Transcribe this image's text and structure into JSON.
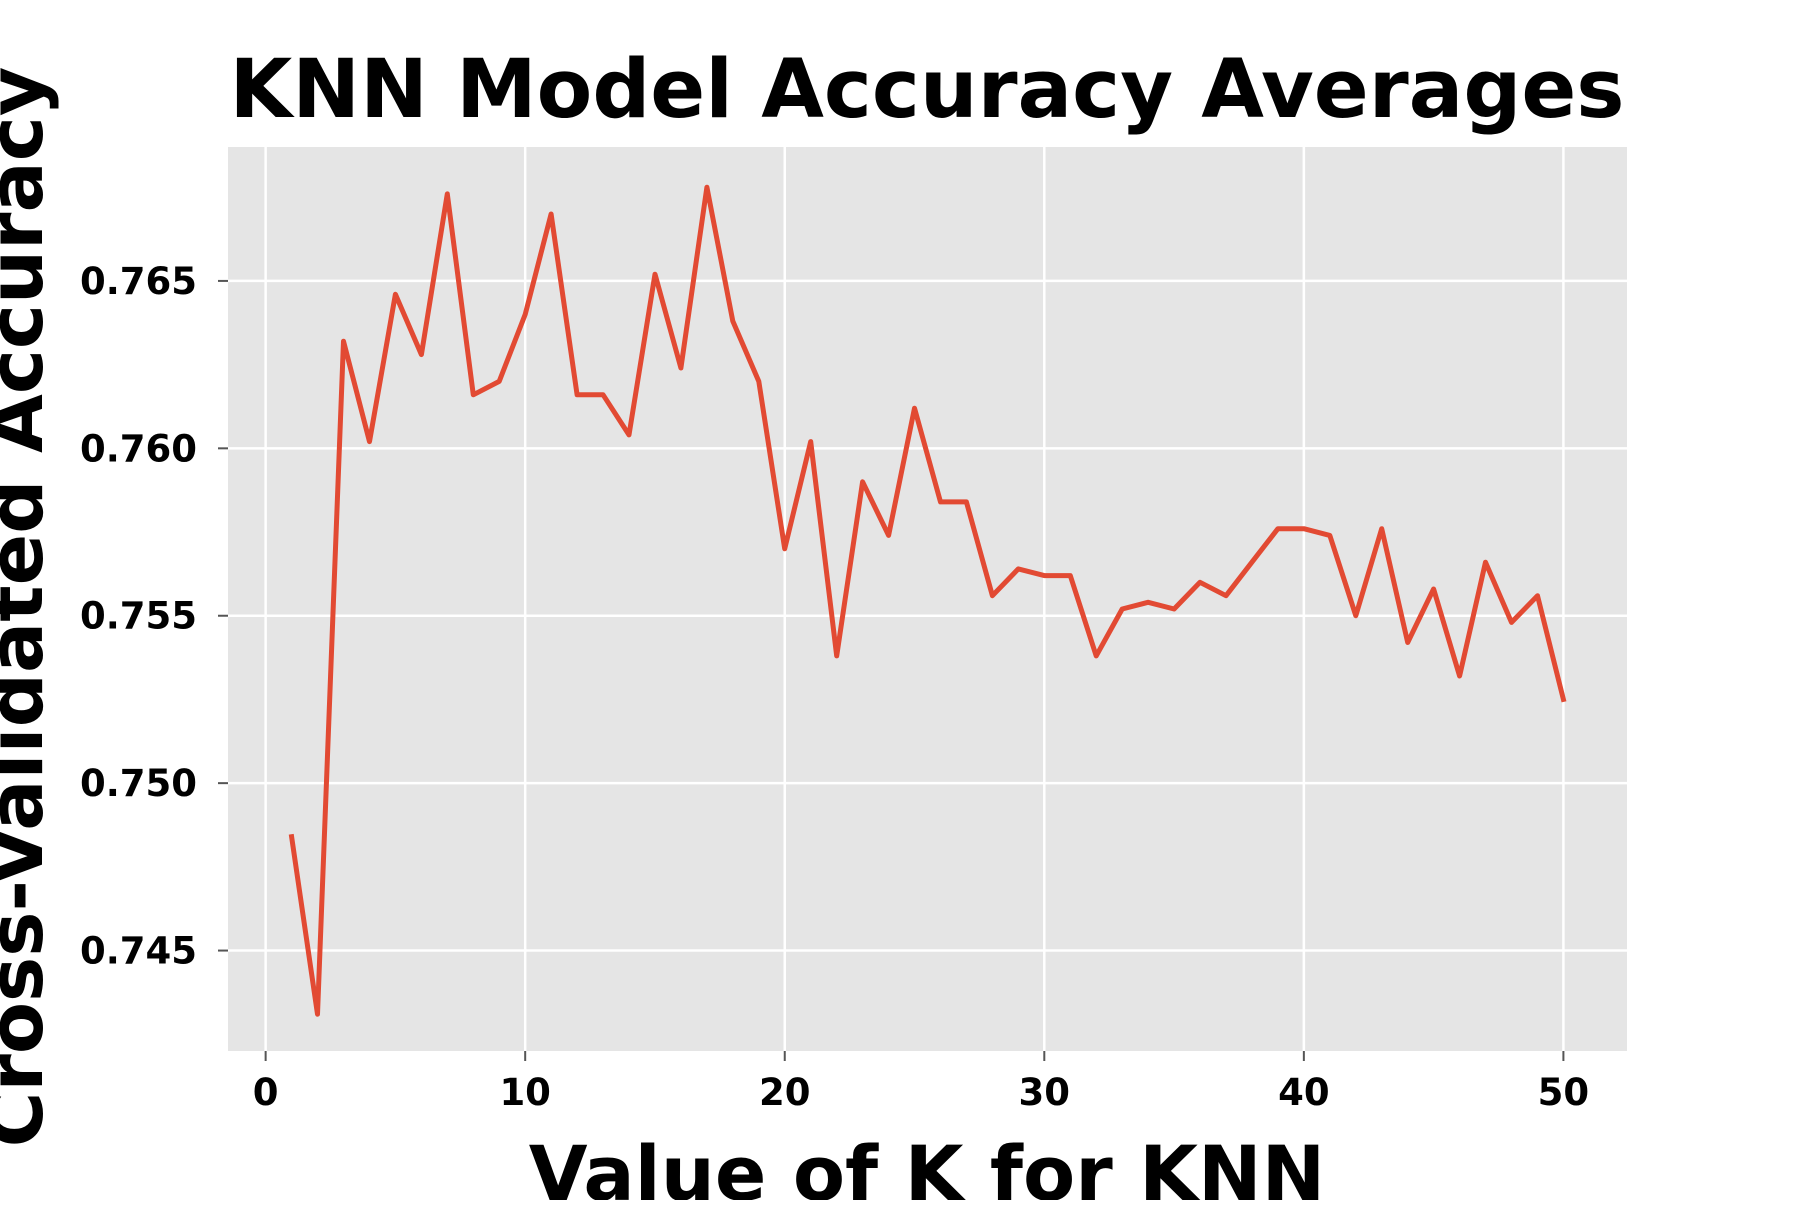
{
  "chart_data": {
    "type": "line",
    "title": "KNN Model Accuracy Averages",
    "xlabel": "Value of K for KNN",
    "ylabel": "Cross-Validated Accuracy",
    "xlim": [
      -1.45,
      52.45
    ],
    "ylim": [
      0.742,
      0.769
    ],
    "xticks": [
      0,
      10,
      20,
      30,
      40,
      50
    ],
    "xtick_labels": [
      "0",
      "10",
      "20",
      "30",
      "40",
      "50"
    ],
    "yticks": [
      0.745,
      0.75,
      0.755,
      0.76,
      0.765
    ],
    "ytick_labels": [
      "0.745",
      "0.750",
      "0.755",
      "0.760",
      "0.765"
    ],
    "grid": true,
    "style": "ggplot",
    "colors": {
      "line": "#e24a33",
      "plot_bg": "#e5e5e5",
      "grid": "#ffffff",
      "tick": "#555555"
    },
    "series": [
      {
        "x": [
          1,
          2,
          3,
          4,
          5,
          6,
          7,
          8,
          9,
          10,
          11,
          12,
          13,
          14,
          15,
          16,
          17,
          18,
          19,
          20,
          21,
          22,
          23,
          24,
          25,
          26,
          27,
          28,
          29,
          30,
          31,
          32,
          33,
          34,
          35,
          36,
          37,
          38,
          39,
          40,
          41,
          42,
          43,
          44,
          45,
          46,
          47,
          48,
          49,
          50
        ],
        "values": [
          0.7484,
          0.7431,
          0.7632,
          0.7602,
          0.7646,
          0.7628,
          0.7676,
          0.7616,
          0.762,
          0.764,
          0.767,
          0.7616,
          0.7616,
          0.7604,
          0.7652,
          0.7624,
          0.7678,
          0.7638,
          0.762,
          0.757,
          0.7602,
          0.7538,
          0.759,
          0.7574,
          0.7612,
          0.7584,
          0.7584,
          0.7556,
          0.7564,
          0.7562,
          0.7562,
          0.7538,
          0.7552,
          0.7554,
          0.7552,
          0.756,
          0.7556,
          0.7566,
          0.7576,
          0.7576,
          0.7574,
          0.755,
          0.7576,
          0.7542,
          0.7558,
          0.7532,
          0.7566,
          0.7548,
          0.7556,
          0.7525
        ]
      }
    ]
  }
}
